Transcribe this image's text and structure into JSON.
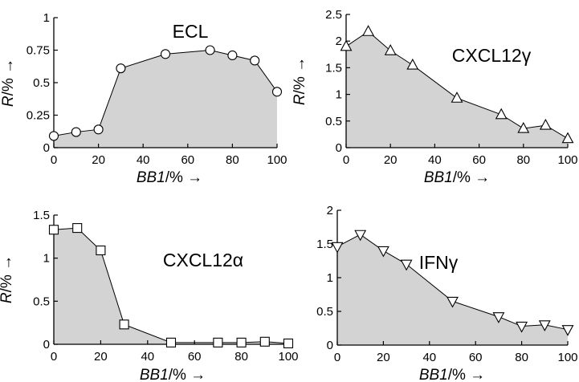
{
  "chart_data": [
    {
      "type": "area",
      "title": "ECL",
      "marker": "circle",
      "xlabel_italic": "BB1",
      "xlabel_rest": "/% →",
      "ylabel_italic": "R",
      "ylabel_rest": "/% →",
      "xlim": [
        0,
        100
      ],
      "ylim": [
        0,
        1
      ],
      "xticks": [
        0,
        20,
        40,
        60,
        80,
        100
      ],
      "yticks": [
        0,
        0.25,
        0.5,
        0.75,
        1
      ],
      "ytick_labels": [
        "0",
        "0.25",
        "0.5",
        "0.75",
        "1"
      ],
      "x": [
        0,
        10,
        20,
        30,
        50,
        70,
        80,
        90,
        100
      ],
      "values": [
        0.09,
        0.12,
        0.14,
        0.61,
        0.72,
        0.75,
        0.71,
        0.67,
        0.43
      ]
    },
    {
      "type": "area",
      "title": "CXCL12γ",
      "marker": "triangle-up",
      "xlabel_italic": "BB1",
      "xlabel_rest": "/% →",
      "ylabel_italic": "R",
      "ylabel_rest": "/% →",
      "xlim": [
        0,
        100
      ],
      "ylim": [
        0,
        2.5
      ],
      "xticks": [
        0,
        20,
        40,
        60,
        80,
        100
      ],
      "yticks": [
        0,
        0.5,
        1,
        1.5,
        2,
        2.5
      ],
      "ytick_labels": [
        "0",
        "0.5",
        "1",
        "1.5",
        "2",
        "2.5"
      ],
      "x": [
        0,
        10,
        20,
        30,
        50,
        70,
        80,
        90,
        100
      ],
      "values": [
        1.9,
        2.18,
        1.82,
        1.55,
        0.93,
        0.62,
        0.36,
        0.42,
        0.17
      ]
    },
    {
      "type": "area",
      "title": "CXCL12α",
      "marker": "square",
      "xlabel_italic": "BB1",
      "xlabel_rest": "/% →",
      "ylabel_italic": "R",
      "ylabel_rest": "/% →",
      "xlim": [
        0,
        100
      ],
      "ylim": [
        0,
        1.5
      ],
      "xticks": [
        0,
        20,
        40,
        60,
        80,
        100
      ],
      "yticks": [
        0,
        0.5,
        1,
        1.5
      ],
      "ytick_labels": [
        "0",
        "0.5",
        "1",
        "1.5"
      ],
      "x": [
        0,
        10,
        20,
        30,
        50,
        70,
        80,
        90,
        100
      ],
      "values": [
        1.33,
        1.35,
        1.09,
        0.23,
        0.02,
        0.02,
        0.02,
        0.03,
        0.01
      ]
    },
    {
      "type": "area",
      "title": "IFNγ",
      "marker": "triangle-down",
      "xlabel_italic": "BB1",
      "xlabel_rest": "/% →",
      "ylabel_italic": "",
      "ylabel_rest": "",
      "xlim": [
        0,
        100
      ],
      "ylim": [
        0,
        2
      ],
      "xticks": [
        0,
        20,
        40,
        60,
        80,
        100
      ],
      "yticks": [
        0,
        0.5,
        1,
        1.5,
        2
      ],
      "ytick_labels": [
        "0",
        "0.5",
        "1",
        "1.5",
        "2"
      ],
      "x": [
        0,
        10,
        20,
        30,
        50,
        70,
        80,
        90,
        100
      ],
      "values": [
        1.46,
        1.64,
        1.4,
        1.2,
        0.65,
        0.42,
        0.28,
        0.3,
        0.23
      ]
    }
  ]
}
